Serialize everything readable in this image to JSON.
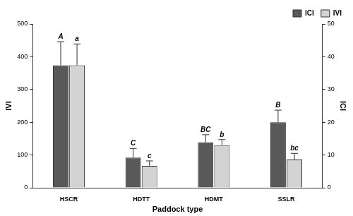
{
  "chart_data": {
    "type": "bar",
    "categories": [
      "HSCR",
      "HDTT",
      "HDMT",
      "SSLR"
    ],
    "x_label": "Paddock type",
    "y_label": "IVI",
    "y2_label": "ICI",
    "ylim": [
      0,
      500
    ],
    "yticks": [
      0,
      100,
      200,
      300,
      400,
      500
    ],
    "y2lim": [
      0,
      50
    ],
    "y2ticks": [
      0,
      10,
      20,
      30,
      40,
      50
    ],
    "grid": false,
    "legend": "upper right",
    "series": [
      {
        "name": "ICI",
        "axis": "y2",
        "color": "#595959",
        "values": [
          37.4,
          9.2,
          13.9,
          20.0
        ],
        "errors": [
          7.2,
          2.8,
          2.3,
          3.7
        ],
        "significance": [
          "A",
          "C",
          "BC",
          "B"
        ]
      },
      {
        "name": "IVI",
        "color": "#d3d3d3",
        "values": [
          374,
          67,
          130,
          86
        ],
        "errors": [
          65,
          15,
          17,
          19
        ],
        "significance": [
          "a",
          "c",
          "b",
          "bc"
        ]
      }
    ]
  }
}
